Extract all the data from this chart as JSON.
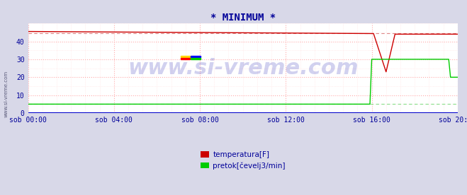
{
  "title": "* MINIMUM *",
  "title_color": "#000099",
  "background_color": "#d8d8e8",
  "plot_bg_color": "#ffffff",
  "grid_color_major": "#ffaaaa",
  "grid_color_minor": "#ffdddd",
  "x_label_color": "#000099",
  "y_label_color": "#000099",
  "watermark_text": "www.si-vreme.com",
  "watermark_color": "#0000aa",
  "watermark_alpha": 0.18,
  "watermark_fontsize": 22,
  "ylim": [
    0,
    50
  ],
  "xlim": [
    0,
    240
  ],
  "xtick_positions": [
    0,
    48,
    96,
    144,
    192,
    240
  ],
  "xtick_labels": [
    "sob 00:00",
    "sob 04:00",
    "sob 08:00",
    "sob 12:00",
    "sob 16:00",
    "sob 20:00"
  ],
  "ytick_positions": [
    0,
    10,
    20,
    30,
    40
  ],
  "legend_labels": [
    "temperatura[F]",
    "pretok[čevelj3/min]"
  ],
  "legend_colors": [
    "#cc0000",
    "#00cc00"
  ],
  "red_avg_value": 44.5,
  "green_avg_value": 5.0,
  "red_solid_color": "#cc0000",
  "green_solid_color": "#00cc00",
  "red_dashed_color": "#dd8888",
  "green_dashed_color": "#88dd88",
  "axis_color": "#0000cc",
  "minor_xtick_step": 8,
  "minor_ytick_step": 5
}
